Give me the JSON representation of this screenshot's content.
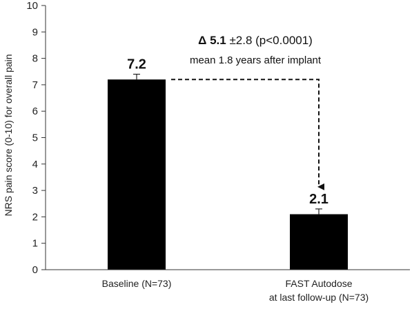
{
  "chart_data": {
    "type": "bar",
    "categories": [
      "Baseline (N=73)",
      "FAST Autodose at last follow-up (N=73)"
    ],
    "category_lines": [
      [
        "Baseline (N=73)"
      ],
      [
        "FAST Autodose",
        "at last follow-up (N=73)"
      ]
    ],
    "values": [
      7.2,
      2.1
    ],
    "error": [
      0.2,
      0.2
    ],
    "data_labels": [
      "7.2",
      "2.1"
    ],
    "ylabel": "NRS pain score (0-10) for overall pain",
    "xlabel": "",
    "ylim": [
      0,
      10
    ],
    "yticks": [
      0,
      1,
      2,
      3,
      4,
      5,
      6,
      7,
      8,
      9,
      10
    ],
    "grid": false,
    "bar_color": "#000000",
    "annotation": {
      "delta_bold": "Δ 5.1",
      "delta_rest": " ±2.8 (p<0.0001)",
      "subtext": "mean 1.8 years after implant"
    }
  }
}
